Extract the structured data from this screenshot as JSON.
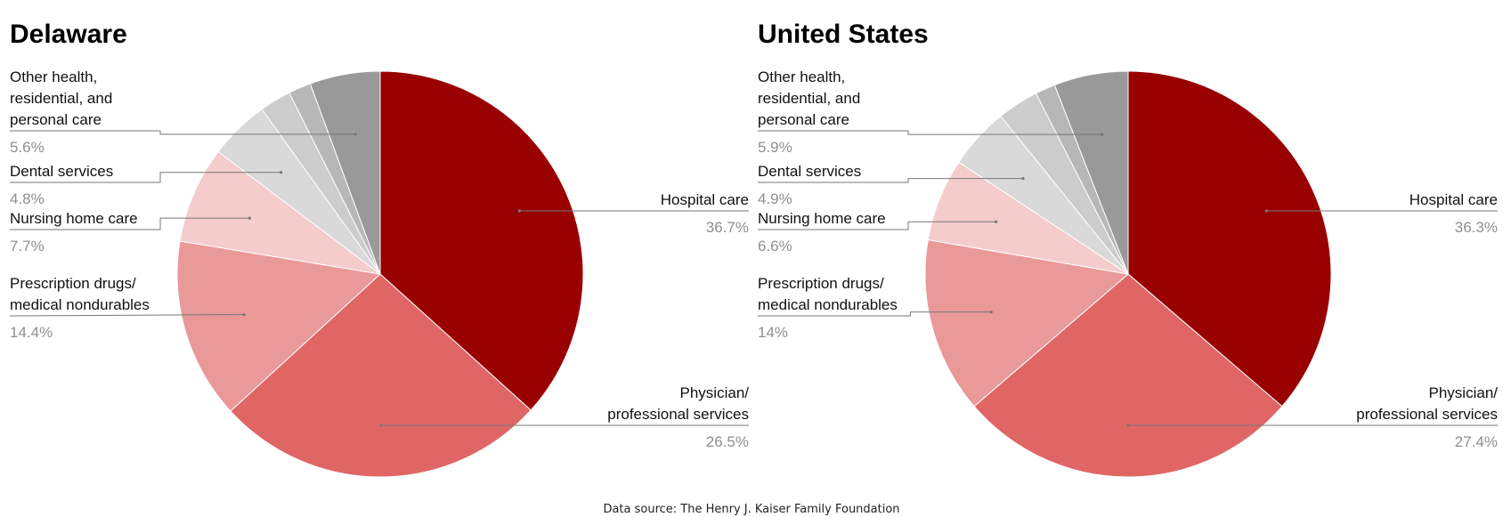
{
  "source_note": "Data source: The Henry J. Kaiser Family Foundation",
  "chart_data": [
    {
      "type": "pie",
      "title": "Delaware",
      "slices": [
        {
          "label": "Hospital care",
          "value": 36.7,
          "display": "36.7%",
          "color": "#990000"
        },
        {
          "label": "Physician/\nprofessional services",
          "value": 26.5,
          "display": "26.5%",
          "color": "#e06666"
        },
        {
          "label": "Prescription drugs/\nmedical nondurables",
          "value": 14.4,
          "display": "14.4%",
          "color": "#ea9999"
        },
        {
          "label": "Nursing home care",
          "value": 7.7,
          "display": "7.7%",
          "color": "#f4cccc"
        },
        {
          "label": "Dental services",
          "value": 4.8,
          "display": "4.8%",
          "color": "#d9d9d9"
        },
        {
          "label": "",
          "value": 2.5,
          "display": "",
          "color": "#cccccc"
        },
        {
          "label": "",
          "value": 1.8,
          "display": "",
          "color": "#b7b7b7"
        },
        {
          "label": "Other health,\nresidential, and\npersonal care",
          "value": 5.6,
          "display": "5.6%",
          "color": "#999999"
        }
      ]
    },
    {
      "type": "pie",
      "title": "United States",
      "slices": [
        {
          "label": "Hospital care",
          "value": 36.3,
          "display": "36.3%",
          "color": "#990000"
        },
        {
          "label": "Physician/\nprofessional services",
          "value": 27.4,
          "display": "27.4%",
          "color": "#e06666"
        },
        {
          "label": "Prescription drugs/\nmedical nondurables",
          "value": 14,
          "display": "14%",
          "color": "#ea9999"
        },
        {
          "label": "Nursing home care",
          "value": 6.6,
          "display": "6.6%",
          "color": "#f4cccc"
        },
        {
          "label": "Dental services",
          "value": 4.9,
          "display": "4.9%",
          "color": "#d9d9d9"
        },
        {
          "label": "",
          "value": 3.3,
          "display": "",
          "color": "#cccccc"
        },
        {
          "label": "",
          "value": 1.6,
          "display": "",
          "color": "#b7b7b7"
        },
        {
          "label": "Other health,\nresidential, and\npersonal care",
          "value": 5.9,
          "display": "5.9%",
          "color": "#999999"
        }
      ]
    }
  ]
}
